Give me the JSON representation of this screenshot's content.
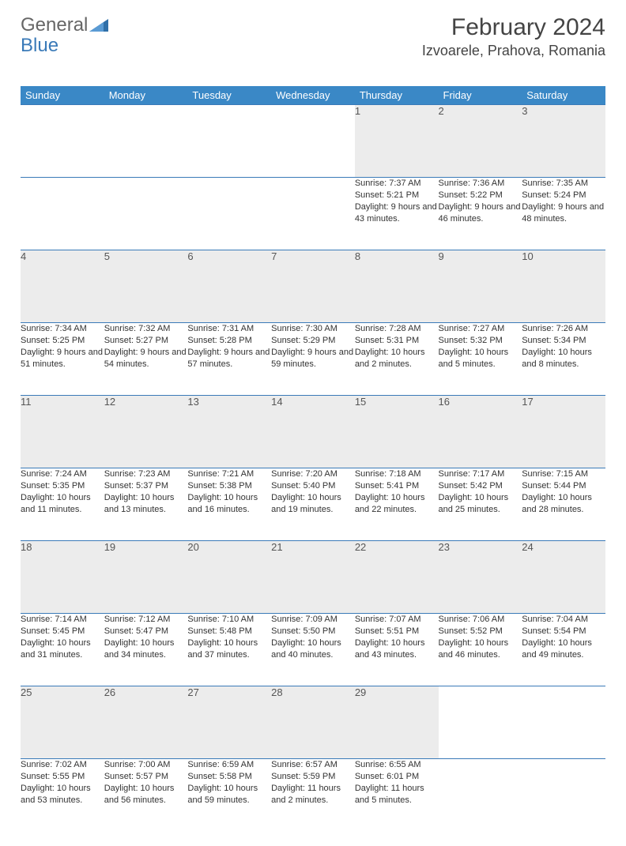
{
  "logo": {
    "text1": "General",
    "text2": "Blue",
    "tri_color": "#2f6fa8"
  },
  "title": "February 2024",
  "location": "Izvoarele, Prahova, Romania",
  "header_bg": "#3a88c6",
  "border_color": "#3a7ab8",
  "daynum_bg": "#ececec",
  "weekdays": [
    "Sunday",
    "Monday",
    "Tuesday",
    "Wednesday",
    "Thursday",
    "Friday",
    "Saturday"
  ],
  "weeks": [
    {
      "days": [
        null,
        null,
        null,
        null,
        {
          "n": "1",
          "sunrise": "7:37 AM",
          "sunset": "5:21 PM",
          "day_h": 9,
          "day_m": 43
        },
        {
          "n": "2",
          "sunrise": "7:36 AM",
          "sunset": "5:22 PM",
          "day_h": 9,
          "day_m": 46
        },
        {
          "n": "3",
          "sunrise": "7:35 AM",
          "sunset": "5:24 PM",
          "day_h": 9,
          "day_m": 48
        }
      ]
    },
    {
      "days": [
        {
          "n": "4",
          "sunrise": "7:34 AM",
          "sunset": "5:25 PM",
          "day_h": 9,
          "day_m": 51
        },
        {
          "n": "5",
          "sunrise": "7:32 AM",
          "sunset": "5:27 PM",
          "day_h": 9,
          "day_m": 54
        },
        {
          "n": "6",
          "sunrise": "7:31 AM",
          "sunset": "5:28 PM",
          "day_h": 9,
          "day_m": 57
        },
        {
          "n": "7",
          "sunrise": "7:30 AM",
          "sunset": "5:29 PM",
          "day_h": 9,
          "day_m": 59
        },
        {
          "n": "8",
          "sunrise": "7:28 AM",
          "sunset": "5:31 PM",
          "day_h": 10,
          "day_m": 2
        },
        {
          "n": "9",
          "sunrise": "7:27 AM",
          "sunset": "5:32 PM",
          "day_h": 10,
          "day_m": 5
        },
        {
          "n": "10",
          "sunrise": "7:26 AM",
          "sunset": "5:34 PM",
          "day_h": 10,
          "day_m": 8
        }
      ]
    },
    {
      "days": [
        {
          "n": "11",
          "sunrise": "7:24 AM",
          "sunset": "5:35 PM",
          "day_h": 10,
          "day_m": 11
        },
        {
          "n": "12",
          "sunrise": "7:23 AM",
          "sunset": "5:37 PM",
          "day_h": 10,
          "day_m": 13
        },
        {
          "n": "13",
          "sunrise": "7:21 AM",
          "sunset": "5:38 PM",
          "day_h": 10,
          "day_m": 16
        },
        {
          "n": "14",
          "sunrise": "7:20 AM",
          "sunset": "5:40 PM",
          "day_h": 10,
          "day_m": 19
        },
        {
          "n": "15",
          "sunrise": "7:18 AM",
          "sunset": "5:41 PM",
          "day_h": 10,
          "day_m": 22
        },
        {
          "n": "16",
          "sunrise": "7:17 AM",
          "sunset": "5:42 PM",
          "day_h": 10,
          "day_m": 25
        },
        {
          "n": "17",
          "sunrise": "7:15 AM",
          "sunset": "5:44 PM",
          "day_h": 10,
          "day_m": 28
        }
      ]
    },
    {
      "days": [
        {
          "n": "18",
          "sunrise": "7:14 AM",
          "sunset": "5:45 PM",
          "day_h": 10,
          "day_m": 31
        },
        {
          "n": "19",
          "sunrise": "7:12 AM",
          "sunset": "5:47 PM",
          "day_h": 10,
          "day_m": 34
        },
        {
          "n": "20",
          "sunrise": "7:10 AM",
          "sunset": "5:48 PM",
          "day_h": 10,
          "day_m": 37
        },
        {
          "n": "21",
          "sunrise": "7:09 AM",
          "sunset": "5:50 PM",
          "day_h": 10,
          "day_m": 40
        },
        {
          "n": "22",
          "sunrise": "7:07 AM",
          "sunset": "5:51 PM",
          "day_h": 10,
          "day_m": 43
        },
        {
          "n": "23",
          "sunrise": "7:06 AM",
          "sunset": "5:52 PM",
          "day_h": 10,
          "day_m": 46
        },
        {
          "n": "24",
          "sunrise": "7:04 AM",
          "sunset": "5:54 PM",
          "day_h": 10,
          "day_m": 49
        }
      ]
    },
    {
      "days": [
        {
          "n": "25",
          "sunrise": "7:02 AM",
          "sunset": "5:55 PM",
          "day_h": 10,
          "day_m": 53
        },
        {
          "n": "26",
          "sunrise": "7:00 AM",
          "sunset": "5:57 PM",
          "day_h": 10,
          "day_m": 56
        },
        {
          "n": "27",
          "sunrise": "6:59 AM",
          "sunset": "5:58 PM",
          "day_h": 10,
          "day_m": 59
        },
        {
          "n": "28",
          "sunrise": "6:57 AM",
          "sunset": "5:59 PM",
          "day_h": 11,
          "day_m": 2
        },
        {
          "n": "29",
          "sunrise": "6:55 AM",
          "sunset": "6:01 PM",
          "day_h": 11,
          "day_m": 5
        },
        null,
        null
      ]
    }
  ]
}
